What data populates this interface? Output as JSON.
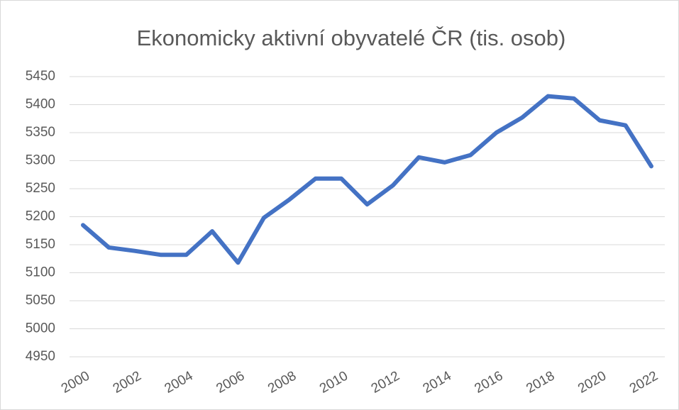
{
  "chart_data": {
    "type": "line",
    "title": "Ekonomicky aktivní obyvatelé ČR (tis. osob)",
    "categories": [
      "2000",
      null,
      "2002",
      null,
      "2004",
      null,
      "2006",
      null,
      "2008",
      null,
      "2010",
      null,
      "2012",
      null,
      "2014",
      null,
      "2016",
      null,
      "2018",
      null,
      "2020",
      null,
      "2022"
    ],
    "series": [
      {
        "name": "Ekonomicky aktivní obyvatelé",
        "color": "#4472c4",
        "values": [
          5185,
          5145,
          5139,
          5132,
          5132,
          5174,
          5118,
          5198,
          5231,
          5268,
          5268,
          5222,
          5256,
          5306,
          5297,
          5310,
          5350,
          5377,
          5415,
          5411,
          5372,
          5363,
          5290
        ]
      }
    ],
    "ylim": [
      4950,
      5450
    ],
    "yticks": [
      4950,
      5000,
      5050,
      5100,
      5150,
      5200,
      5250,
      5300,
      5350,
      5400,
      5450
    ],
    "grid": true
  }
}
